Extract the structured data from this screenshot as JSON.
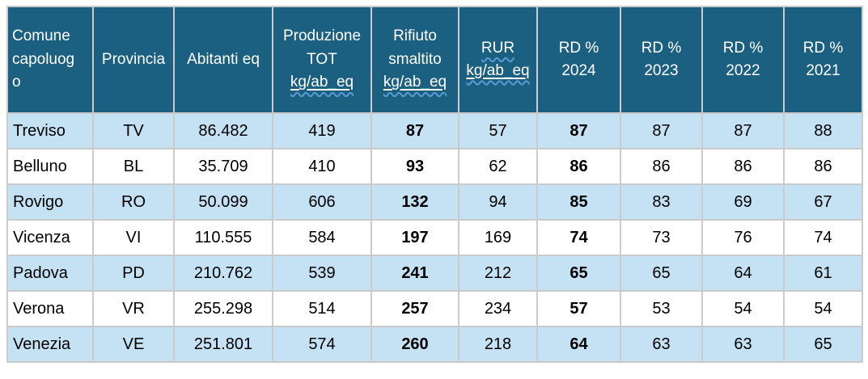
{
  "colors": {
    "header_bg": "#1b6080",
    "header_text": "#ffffff",
    "row_alt_bg": "#c4e2f4",
    "row_bg": "#ffffff",
    "grid_border": "#cbcbcb",
    "body_text": "#000000",
    "squiggle_blue": "#5b9bd5"
  },
  "table": {
    "columns": [
      {
        "key": "comune",
        "align": "left",
        "bold": false,
        "header_lines": [
          {
            "text": "Comune capoluogo",
            "underline": false,
            "wavy": false
          }
        ]
      },
      {
        "key": "provincia",
        "align": "center",
        "bold": false,
        "header_lines": [
          {
            "text": "Provincia",
            "underline": false,
            "wavy": false
          }
        ]
      },
      {
        "key": "abitanti",
        "align": "center",
        "bold": false,
        "header_lines": [
          {
            "text": "Abitanti eq",
            "underline": false,
            "wavy": false
          }
        ]
      },
      {
        "key": "produzione",
        "align": "center",
        "bold": false,
        "header_lines": [
          {
            "text": "Produzione",
            "underline": false,
            "wavy": false
          },
          {
            "text": "TOT",
            "underline": false,
            "wavy": false
          },
          {
            "text": "kg/ab_eq",
            "underline": true,
            "wavy": true
          }
        ]
      },
      {
        "key": "rifiuto",
        "align": "center",
        "bold": true,
        "header_lines": [
          {
            "text": "Rifiuto",
            "underline": false,
            "wavy": false
          },
          {
            "text": "smaltito",
            "underline": false,
            "wavy": false
          },
          {
            "text": "kg/ab_eq",
            "underline": true,
            "wavy": true
          }
        ]
      },
      {
        "key": "rur",
        "align": "center",
        "bold": false,
        "header_lines": [
          {
            "text": "RUR",
            "underline": false,
            "wavy": true
          },
          {
            "text": "kg/ab_eq",
            "underline": true,
            "wavy": true
          }
        ]
      },
      {
        "key": "rd2024",
        "align": "center",
        "bold": true,
        "header_lines": [
          {
            "text": "RD %",
            "underline": false,
            "wavy": false
          },
          {
            "text": "2024",
            "underline": false,
            "wavy": false
          }
        ]
      },
      {
        "key": "rd2023",
        "align": "center",
        "bold": false,
        "header_lines": [
          {
            "text": "RD %",
            "underline": false,
            "wavy": false
          },
          {
            "text": "2023",
            "underline": false,
            "wavy": false
          }
        ]
      },
      {
        "key": "rd2022",
        "align": "center",
        "bold": false,
        "header_lines": [
          {
            "text": "RD %",
            "underline": false,
            "wavy": false
          },
          {
            "text": "2022",
            "underline": false,
            "wavy": false
          }
        ]
      },
      {
        "key": "rd2021",
        "align": "center",
        "bold": false,
        "header_lines": [
          {
            "text": "RD %",
            "underline": false,
            "wavy": false
          },
          {
            "text": "2021",
            "underline": false,
            "wavy": false
          }
        ]
      }
    ],
    "rows": [
      {
        "comune": "Treviso",
        "provincia": "TV",
        "abitanti": "86.482",
        "produzione": "419",
        "rifiuto": "87",
        "rur": "57",
        "rd2024": "87",
        "rd2023": "87",
        "rd2022": "87",
        "rd2021": "88"
      },
      {
        "comune": "Belluno",
        "provincia": "BL",
        "abitanti": "35.709",
        "produzione": "410",
        "rifiuto": "93",
        "rur": "62",
        "rd2024": "86",
        "rd2023": "86",
        "rd2022": "86",
        "rd2021": "86"
      },
      {
        "comune": "Rovigo",
        "provincia": "RO",
        "abitanti": "50.099",
        "produzione": "606",
        "rifiuto": "132",
        "rur": "94",
        "rd2024": "85",
        "rd2023": "83",
        "rd2022": "69",
        "rd2021": "67"
      },
      {
        "comune": "Vicenza",
        "provincia": "VI",
        "abitanti": "110.555",
        "produzione": "584",
        "rifiuto": "197",
        "rur": "169",
        "rd2024": "74",
        "rd2023": "73",
        "rd2022": "76",
        "rd2021": "74"
      },
      {
        "comune": "Padova",
        "provincia": "PD",
        "abitanti": "210.762",
        "produzione": "539",
        "rifiuto": "241",
        "rur": "212",
        "rd2024": "65",
        "rd2023": "65",
        "rd2022": "64",
        "rd2021": "61"
      },
      {
        "comune": "Verona",
        "provincia": "VR",
        "abitanti": "255.298",
        "produzione": "514",
        "rifiuto": "257",
        "rur": "234",
        "rd2024": "57",
        "rd2023": "53",
        "rd2022": "54",
        "rd2021": "54"
      },
      {
        "comune": "Venezia",
        "provincia": "VE",
        "abitanti": "251.801",
        "produzione": "574",
        "rifiuto": "260",
        "rur": "218",
        "rd2024": "64",
        "rd2023": "63",
        "rd2022": "63",
        "rd2021": "65"
      }
    ]
  }
}
